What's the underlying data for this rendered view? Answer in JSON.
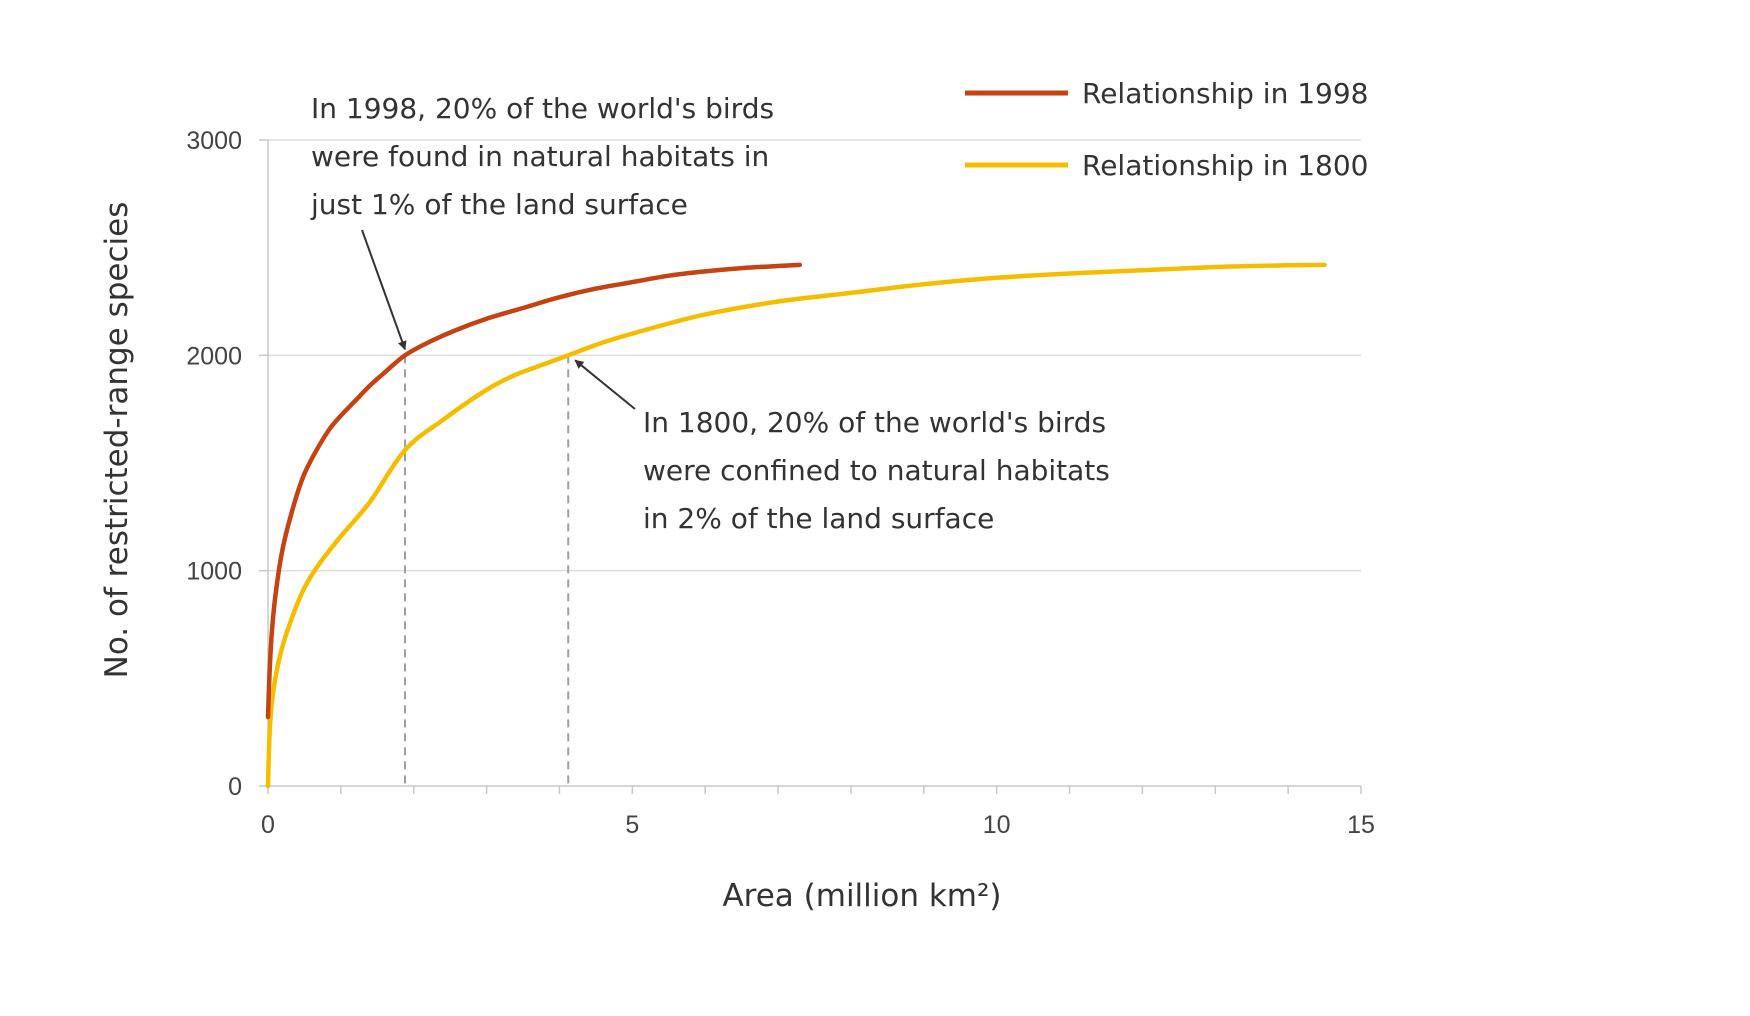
{
  "colors": {
    "series_1998": "#c54212",
    "series_1800": "#f5bd00",
    "grid": "#dddddd",
    "axis": "#c8c8c8",
    "reference": "#a0a0a0",
    "arrow": "#333333",
    "text": "#333333"
  },
  "chart_data": {
    "type": "line",
    "title": "",
    "xlabel": "Area (million km²)",
    "ylabel": "No. of restricted-range species",
    "xlim": [
      0,
      15
    ],
    "ylim": [
      0,
      3000
    ],
    "xticks": [
      "0",
      "5",
      "10",
      "15"
    ],
    "yticks": [
      "0",
      "1000",
      "2000",
      "3000"
    ],
    "grid": "horizontal",
    "legend_position": "top-right",
    "series": [
      {
        "name": "Relationship in 1998",
        "color": "#c54212",
        "x": [
          0,
          0.02,
          0.05,
          0.1,
          0.2,
          0.35,
          0.5,
          0.7,
          0.85,
          1.0,
          1.2,
          1.4,
          1.6,
          1.88,
          2.2,
          2.6,
          3.0,
          3.5,
          4.0,
          4.5,
          5.0,
          5.5,
          6.0,
          6.5,
          7.0,
          7.3
        ],
        "y": [
          320,
          520,
          700,
          880,
          1100,
          1300,
          1450,
          1580,
          1660,
          1720,
          1790,
          1860,
          1920,
          2000,
          2060,
          2120,
          2170,
          2220,
          2270,
          2310,
          2340,
          2370,
          2390,
          2405,
          2415,
          2420
        ]
      },
      {
        "name": "Relationship in 1800",
        "color": "#f5bd00",
        "x": [
          0,
          0.02,
          0.05,
          0.1,
          0.2,
          0.35,
          0.5,
          0.7,
          1.0,
          1.4,
          1.88,
          2.4,
          3.0,
          3.4,
          3.8,
          4.12,
          4.6,
          5.2,
          6.0,
          7.0,
          8.0,
          9.0,
          10.0,
          11.0,
          12.0,
          13.0,
          14.0,
          14.5
        ],
        "y": [
          0,
          230,
          380,
          500,
          650,
          800,
          920,
          1030,
          1160,
          1320,
          1560,
          1700,
          1840,
          1910,
          1960,
          2000,
          2060,
          2120,
          2190,
          2250,
          2290,
          2330,
          2360,
          2380,
          2395,
          2410,
          2418,
          2420
        ]
      }
    ],
    "annotations": [
      {
        "id": "a1998",
        "lines": [
          "In 1998, 20% of the world's birds",
          "were found in natural habitats in",
          "just 1% of the land surface"
        ],
        "target_x": 1.88,
        "target_y": 2000
      },
      {
        "id": "a1800",
        "lines": [
          "In 1800, 20% of the world's birds",
          "were confined to natural habitats",
          "in 2% of the land surface"
        ],
        "target_x": 4.12,
        "target_y": 2000
      }
    ]
  }
}
